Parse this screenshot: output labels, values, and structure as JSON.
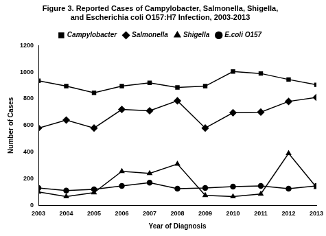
{
  "chart_data": {
    "type": "line",
    "title": [
      "Figure 3. Reported Cases of Campylobacter, Salmonella, Shigella,",
      "and Escherichia coli O157:H7 Infection, 2003-2013"
    ],
    "x_label": "Year of Diagnosis",
    "y_label": "Number of Cases",
    "categories": [
      "2003",
      "2004",
      "2005",
      "2006",
      "2007",
      "2008",
      "2009",
      "2010",
      "2011",
      "2012",
      "2013"
    ],
    "series": [
      {
        "name": "Campylobacter",
        "color": "#000000",
        "marker": "square",
        "values": [
          935,
          895,
          845,
          895,
          920,
          885,
          895,
          1005,
          990,
          945,
          905
        ]
      },
      {
        "name": "Salmonella",
        "color": "#000000",
        "marker": "diamond",
        "values": [
          580,
          640,
          580,
          720,
          710,
          785,
          580,
          695,
          700,
          780,
          810
        ]
      },
      {
        "name": "Shigella",
        "color": "#000000",
        "marker": "triangle",
        "values": [
          100,
          65,
          95,
          255,
          240,
          310,
          75,
          65,
          85,
          390,
          135
        ]
      },
      {
        "name": "E.coli O157",
        "color": "#000000",
        "marker": "circle",
        "values": [
          130,
          110,
          120,
          145,
          170,
          125,
          130,
          140,
          145,
          125,
          145
        ]
      }
    ],
    "ylim": [
      0,
      1200
    ],
    "yticks": [
      0,
      200,
      400,
      600,
      800,
      1000,
      1200
    ],
    "grid": false,
    "legend": "top"
  }
}
